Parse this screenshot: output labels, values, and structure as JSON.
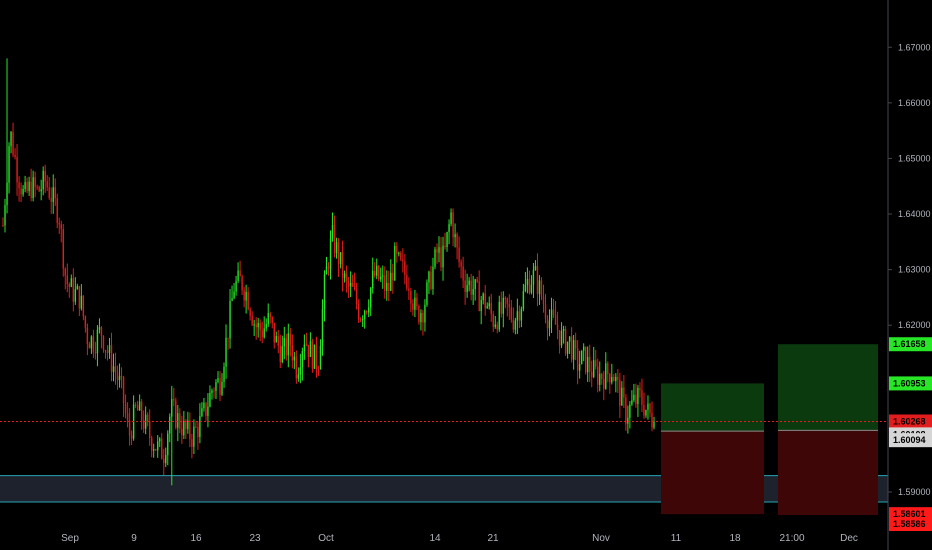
{
  "chart_data": {
    "type": "candlestick",
    "title": "",
    "ylim": [
      1.5855,
      1.6785
    ],
    "y_ticks": [
      "1.67000",
      "1.66000",
      "1.65000",
      "1.64000",
      "1.63000",
      "1.62000",
      "1.59000"
    ],
    "x_ticks": [
      "Sep",
      "9",
      "16",
      "23",
      "Oct",
      "14",
      "21",
      "Nov",
      "11",
      "18",
      "21:00",
      "Dec"
    ],
    "price_labels": [
      {
        "label": "1.61658",
        "value": 1.61658,
        "bg": "#26e626",
        "fg": "#000000"
      },
      {
        "label": "1.60953",
        "value": 1.60953,
        "bg": "#26e626",
        "fg": "#000000"
      },
      {
        "label": "1.60268",
        "value": 1.60268,
        "bg": "#e31d1d",
        "fg": "#000000"
      },
      {
        "label": "1.60108",
        "value": 1.60108,
        "bg": "#d6d6d6",
        "fg": "#000000"
      },
      {
        "label": "1.60094",
        "value": 1.60094,
        "bg": "#d6d6d6",
        "fg": "#000000"
      },
      {
        "label": "1.58601",
        "value": 1.58601,
        "bg": "#ff1a1a",
        "fg": "#000000"
      },
      {
        "label": "1.58586",
        "value": 1.58586,
        "bg": "#ff1a1a",
        "fg": "#000000"
      }
    ],
    "current_price": 1.60268,
    "support_zone": [
      1.5882,
      1.59295
    ],
    "positions": [
      {
        "entry": 1.60094,
        "target": 1.60953,
        "stop": 1.58601
      },
      {
        "entry": 1.60108,
        "target": 1.61658,
        "stop": 1.58586
      }
    ],
    "close_path": [
      1.638,
      1.655,
      1.648,
      1.643,
      1.645,
      1.644,
      1.646,
      1.643,
      1.64,
      1.628,
      1.626,
      1.625,
      1.618,
      1.617,
      1.619,
      1.615,
      1.612,
      1.608,
      1.6,
      1.605,
      1.603,
      1.6,
      1.598,
      1.597,
      1.605,
      1.603,
      1.601,
      1.6,
      1.602,
      1.605,
      1.609,
      1.61,
      1.618,
      1.627,
      1.628,
      1.625,
      1.62,
      1.619,
      1.621,
      1.617,
      1.615,
      1.617,
      1.612,
      1.618,
      1.615,
      1.613,
      1.628,
      1.636,
      1.632,
      1.627,
      1.626,
      1.622,
      1.624,
      1.629,
      1.628,
      1.626,
      1.632,
      1.63,
      1.628,
      1.622,
      1.623,
      1.628,
      1.633,
      1.632,
      1.64,
      1.632,
      1.628,
      1.627,
      1.625,
      1.624,
      1.621,
      1.622,
      1.623,
      1.621,
      1.624,
      1.628,
      1.629,
      1.625,
      1.621,
      1.62,
      1.617,
      1.617,
      1.613,
      1.614,
      1.612,
      1.611,
      1.611,
      1.612,
      1.608,
      1.604,
      1.606,
      1.607,
      1.6045,
      1.6027
    ],
    "up_color": "#26e626",
    "down_color": "#e31d1d"
  }
}
